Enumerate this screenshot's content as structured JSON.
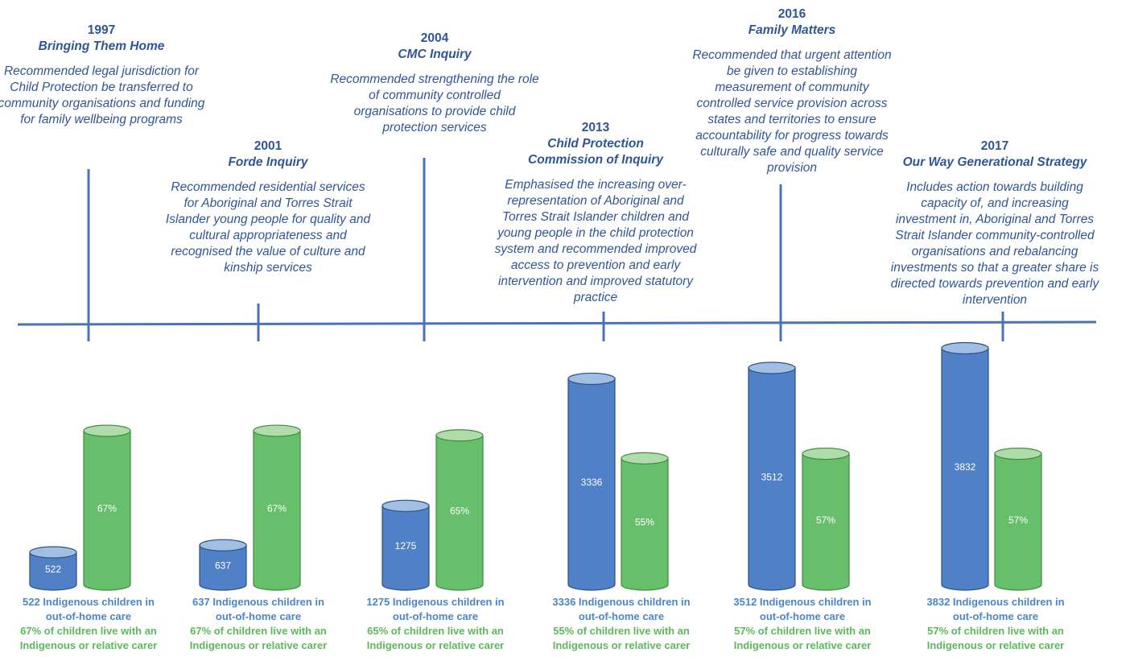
{
  "colors": {
    "timeline": "#4a72b8",
    "milestone_text": "#2f5597",
    "children_fill": "#5081c6",
    "children_top": "#a1bfe3",
    "children_stroke": "#2c4f86",
    "carer_fill": "#67bf6b",
    "carer_top": "#b0dcaa",
    "carer_stroke": "#3f8a40",
    "children_caption": "#4a86c8",
    "carer_caption": "#5cb85c"
  },
  "milestones": [
    {
      "year": "1997",
      "title_lines": [
        "Bringing Them Home"
      ],
      "desc": "Recommended legal jurisdiction for Child Protection be transferred to community organisations and funding for family wellbeing programs"
    },
    {
      "year": "2001",
      "title_lines": [
        "Forde Inquiry"
      ],
      "desc": "Recommended residential services for Aboriginal and Torres Strait Islander young people for quality and cultural appropriateness and recognised the value of culture and kinship services"
    },
    {
      "year": "2004",
      "title_lines": [
        "CMC Inquiry"
      ],
      "desc": "Recommended strengthening the role of community controlled organisations to provide child protection services"
    },
    {
      "year": "2013",
      "title_lines": [
        "Child Protection",
        "Commission of Inquiry"
      ],
      "desc": "Emphasised the increasing over-representation of Aboriginal and Torres Strait Islander children and young people in the child protection system and recommended improved access to prevention and early intervention and improved statutory practice"
    },
    {
      "year": "2016",
      "title_lines": [
        "Family Matters"
      ],
      "desc": "Recommended that urgent attention be given to establishing measurement of community controlled service provision across states and territories to ensure accountability for progress towards culturally safe and quality service provision"
    },
    {
      "year": "2017",
      "title_lines": [
        "Our Way Generational Strategy"
      ],
      "desc": "Includes action towards building capacity of, and increasing investment in, Aboriginal and Torres Strait Islander community-controlled organisations and rebalancing investments so that a greater share is directed towards prevention and early intervention"
    }
  ],
  "chart_data": {
    "type": "bar",
    "bar_shape": "cylinder",
    "categories": [
      "1997",
      "2001",
      "2004",
      "2013",
      "2016",
      "2017"
    ],
    "series": [
      {
        "values": [
          522,
          637,
          1275,
          3336,
          3512,
          3832
        ],
        "labels": [
          "522",
          "637",
          "1275",
          "3336",
          "3512",
          "3832"
        ]
      },
      {
        "values": [
          67,
          67,
          65,
          55,
          57,
          57
        ],
        "labels": [
          "67%",
          "67%",
          "65%",
          "55%",
          "57%",
          "57%"
        ]
      }
    ]
  },
  "stats": [
    {
      "children_number": "522",
      "children_text": " Indigenous children in",
      "children_text_2": "out-of-home care",
      "carer_line_1": "67% of children live with an",
      "carer_line_2": "Indigenous or relative carer"
    },
    {
      "children_number": "637",
      "children_text": " Indigenous children in",
      "children_text_2": "out-of-home care",
      "carer_line_1": "67% of children live with an",
      "carer_line_2": "Indigenous or relative carer"
    },
    {
      "children_number": "1275",
      "children_text": " Indigenous children in",
      "children_text_2": "out-of-home care",
      "carer_line_1": "65% of children live with an",
      "carer_line_2": "Indigenous or relative carer"
    },
    {
      "children_number": "3336",
      "children_text": " Indigenous children in",
      "children_text_2": "out-of-home care",
      "carer_line_1": "55% of children live with an",
      "carer_line_2": "Indigenous or relative carer"
    },
    {
      "children_number": "3512",
      "children_text": " Indigenous children in",
      "children_text_2": "out-of-home care",
      "carer_line_1": "57% of children live with an",
      "carer_line_2": "Indigenous or relative carer"
    },
    {
      "children_number": "3832",
      "children_text": " Indigenous children in",
      "children_text_2": "out-of-home care",
      "carer_line_1": "57% of children live with an",
      "carer_line_2": "Indigenous or relative carer"
    }
  ]
}
